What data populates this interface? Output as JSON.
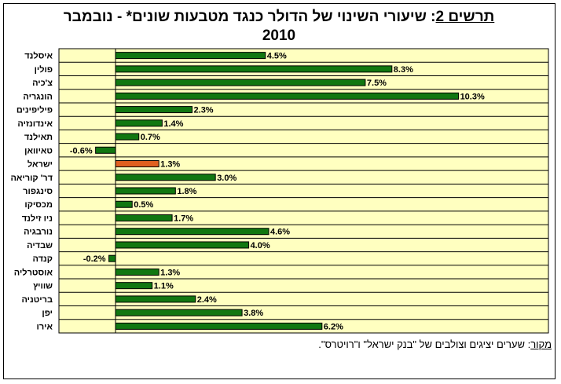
{
  "chart_title": {
    "prefix": "תרשים 2",
    "text": ": שיעורי השינוי של הדולר כנגד מטבעות שונים* - נובמבר",
    "year": "2010"
  },
  "source": {
    "label": "מקור",
    "text": ": שערים יציגים וצולבים של \"בנק ישראל\" ו\"רויטרס\"."
  },
  "colors": {
    "bar": "#117711",
    "highlight": "#e06020",
    "plot_bg": "#ffffc0"
  },
  "chart_data": {
    "type": "bar",
    "orientation": "horizontal",
    "categories": [
      "איסלנד",
      "פולין",
      "צ'כיה",
      "הונגריה",
      "פיליפינים",
      "אינדונזיה",
      "תאילנד",
      "טאיוואן",
      "ישראל",
      "דר' קוריאה",
      "סינגפור",
      "מכסיקו",
      "ניו זילנד",
      "נורבגיה",
      "שבדיה",
      "קנדה",
      "אוסטרליה",
      "שוויץ",
      "בריטניה",
      "יפן",
      "אירו"
    ],
    "values": [
      4.5,
      8.3,
      7.5,
      10.3,
      2.3,
      1.4,
      0.7,
      -0.6,
      1.3,
      3.0,
      1.8,
      0.5,
      1.7,
      4.6,
      4.0,
      -0.2,
      1.3,
      1.1,
      2.4,
      3.8,
      6.2
    ],
    "labels": [
      "4.5%",
      "8.3%",
      "7.5%",
      "10.3%",
      "2.3%",
      "1.4%",
      "0.7%",
      "-0.6%",
      "1.3%",
      "3.0%",
      "1.8%",
      "0.5%",
      "1.7%",
      "4.6%",
      "4.0%",
      "-0.2%",
      "1.3%",
      "1.1%",
      "2.4%",
      "3.8%",
      "6.2%"
    ],
    "highlight_category": "ישראל",
    "xlim": [
      -1.7,
      13
    ],
    "grid": true
  }
}
